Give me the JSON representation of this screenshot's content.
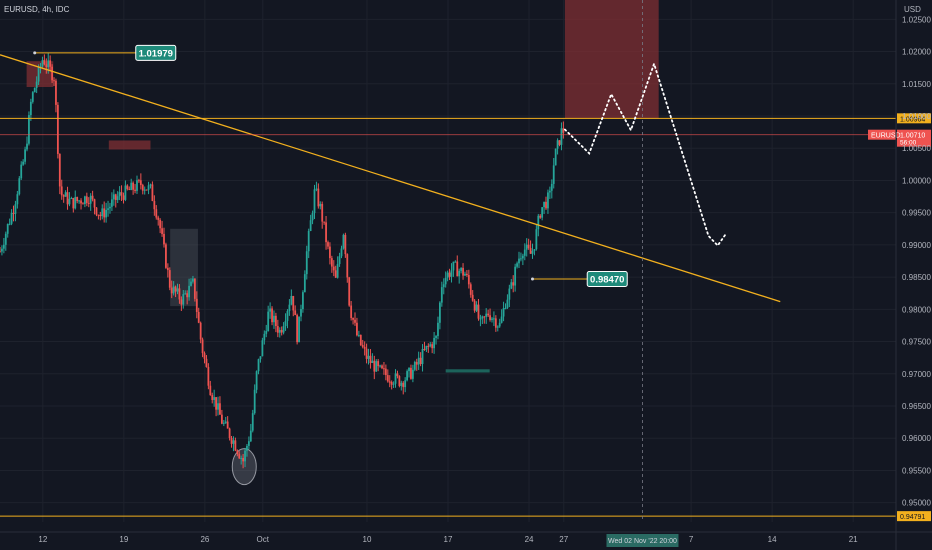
{
  "header": {
    "symbol_label": "EURUSD, 4h, IDC",
    "currency": "USD"
  },
  "colors": {
    "background": "#131722",
    "up": "#26a69a",
    "down": "#ef5350",
    "trendline": "#f2b01e",
    "zone": "#7f2f33",
    "grid": "#1e222d"
  },
  "chart_data": {
    "type": "candlestick",
    "symbol": "EURUSD",
    "timeframe": "4h",
    "source": "IDC",
    "y_axis": {
      "min": 0.947,
      "max": 1.028,
      "ticks": [
        1.025,
        1.02,
        1.015,
        1.01,
        1.005,
        1.0,
        0.995,
        0.99,
        0.985,
        0.98,
        0.975,
        0.97,
        0.965,
        0.96,
        0.955,
        0.95
      ],
      "tick_labels": [
        "1.02500",
        "1.02000",
        "1.01500",
        "1.01000",
        "1.00500",
        "1.00000",
        "0.99500",
        "0.99000",
        "0.98500",
        "0.98000",
        "0.97500",
        "0.97000",
        "0.96500",
        "0.96000",
        "0.95500",
        "0.95000"
      ]
    },
    "x_axis": {
      "ticks": [
        {
          "label": "12",
          "day": 12
        },
        {
          "label": "19",
          "day": 19
        },
        {
          "label": "26",
          "day": 26
        },
        {
          "label": "Oct",
          "day": 31
        },
        {
          "label": "10",
          "day": 40
        },
        {
          "label": "17",
          "day": 47
        },
        {
          "label": "24",
          "day": 54
        },
        {
          "label": "27",
          "day": 57
        },
        {
          "label": "7",
          "day": 68
        },
        {
          "label": "14",
          "day": 75
        },
        {
          "label": "21",
          "day": 82
        }
      ],
      "start_day": 8.3,
      "end_day": 85.7,
      "crosshair_label": "Wed 02 Nov '22   20:00",
      "crosshair_day": 63.8
    },
    "price_labels": {
      "high": "1.01979",
      "low": "0.98470",
      "resistance": "1.00964",
      "current": "1.00710",
      "current_symbol": "EURUSD",
      "countdown": "56:00",
      "bottom_line": "0.94791"
    },
    "levels": {
      "resistance": 1.00964,
      "current": 1.0071,
      "bottom": 0.94791,
      "high_point": 1.01979,
      "low_point": 0.9847
    },
    "trendline": {
      "from": [
        8.3,
        1.0195
      ],
      "to": [
        75.7,
        0.9812
      ]
    },
    "zones": [
      {
        "type": "supply",
        "x": [
          57.1,
          65.2
        ],
        "y": [
          1.00964,
          1.028
        ]
      },
      {
        "type": "supply",
        "x": [
          10.6,
          12.9
        ],
        "y": [
          1.0145,
          1.0185
        ]
      },
      {
        "type": "supply",
        "x": [
          17.7,
          21.3
        ],
        "y": [
          1.0048,
          1.0062
        ]
      },
      {
        "type": "consolidation",
        "x": [
          23.0,
          25.4
        ],
        "y": [
          0.9805,
          0.9925
        ]
      },
      {
        "type": "demand",
        "x": [
          46.8,
          50.6
        ],
        "y": [
          0.9702,
          0.9707
        ]
      }
    ],
    "forecast_path": [
      [
        57.1,
        1.0079
      ],
      [
        59.2,
        1.0042
      ],
      [
        61.1,
        1.0134
      ],
      [
        62.8,
        1.0078
      ],
      [
        64.8,
        1.0181
      ],
      [
        69.5,
        0.9914
      ],
      [
        70.3,
        0.9899
      ],
      [
        71.0,
        0.9917
      ]
    ],
    "lows_circle": {
      "day": 29.4,
      "price": 0.9556
    },
    "candle_anchors": [
      [
        8.3,
        0.989
      ],
      [
        9.5,
        0.996
      ],
      [
        10.5,
        1.0045
      ],
      [
        11.0,
        1.0125
      ],
      [
        12.0,
        1.019
      ],
      [
        12.5,
        1.0175
      ],
      [
        13.0,
        1.016
      ],
      [
        13.5,
        0.998
      ],
      [
        14.5,
        0.9965
      ],
      [
        16.0,
        0.9975
      ],
      [
        17.0,
        0.9945
      ],
      [
        18.5,
        0.9975
      ],
      [
        19.5,
        0.9985
      ],
      [
        20.5,
        0.9995
      ],
      [
        21.3,
        0.9985
      ],
      [
        22.0,
        0.994
      ],
      [
        23.0,
        0.9835
      ],
      [
        24.0,
        0.9815
      ],
      [
        25.0,
        0.984
      ],
      [
        25.7,
        0.9745
      ],
      [
        26.5,
        0.9675
      ],
      [
        27.5,
        0.9625
      ],
      [
        28.5,
        0.9595
      ],
      [
        29.3,
        0.9565
      ],
      [
        30.0,
        0.9615
      ],
      [
        30.5,
        0.9705
      ],
      [
        31.5,
        0.9795
      ],
      [
        32.5,
        0.9765
      ],
      [
        33.5,
        0.9825
      ],
      [
        34.0,
        0.9755
      ],
      [
        34.7,
        0.9875
      ],
      [
        35.5,
        0.9985
      ],
      [
        36.0,
        0.9955
      ],
      [
        36.8,
        0.9875
      ],
      [
        37.3,
        0.9845
      ],
      [
        38.0,
        0.9925
      ],
      [
        38.5,
        0.9805
      ],
      [
        39.2,
        0.9755
      ],
      [
        40.0,
        0.9725
      ],
      [
        41.0,
        0.9705
      ],
      [
        42.0,
        0.9695
      ],
      [
        43.0,
        0.9688
      ],
      [
        44.0,
        0.9705
      ],
      [
        45.0,
        0.9735
      ],
      [
        46.0,
        0.9755
      ],
      [
        46.5,
        0.9845
      ],
      [
        47.5,
        0.9865
      ],
      [
        48.5,
        0.9855
      ],
      [
        49.2,
        0.9815
      ],
      [
        49.8,
        0.9775
      ],
      [
        50.5,
        0.9795
      ],
      [
        51.5,
        0.9775
      ],
      [
        52.0,
        0.9815
      ],
      [
        52.5,
        0.9835
      ],
      [
        53.0,
        0.9875
      ],
      [
        53.5,
        0.9895
      ],
      [
        54.2,
        0.9885
      ],
      [
        54.5,
        0.9905
      ],
      [
        55.0,
        0.9955
      ],
      [
        55.8,
        0.9975
      ],
      [
        56.2,
        1.0035
      ],
      [
        56.8,
        1.0075
      ],
      [
        57.1,
        1.0079
      ]
    ]
  }
}
